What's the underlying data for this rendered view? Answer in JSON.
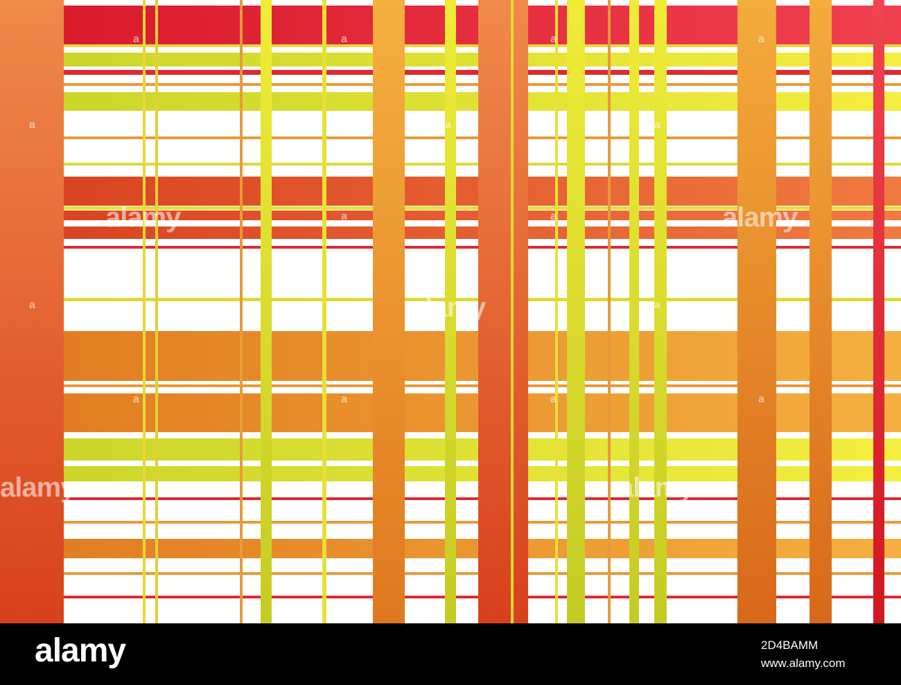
{
  "artwork": {
    "colors": {
      "red": "#e0262a",
      "orange_red": "#e85c2a",
      "orange": "#f08c2e",
      "amber": "#f3a43a",
      "yellow": "#e8e22c",
      "yellow_green": "#c8d42a",
      "white": "#ffffff"
    }
  },
  "watermarks": {
    "large": "alamy",
    "small": "a"
  },
  "footer": {
    "logo": "alamy",
    "image_id": "2D4BAMM",
    "url": "www.alamy.com"
  }
}
